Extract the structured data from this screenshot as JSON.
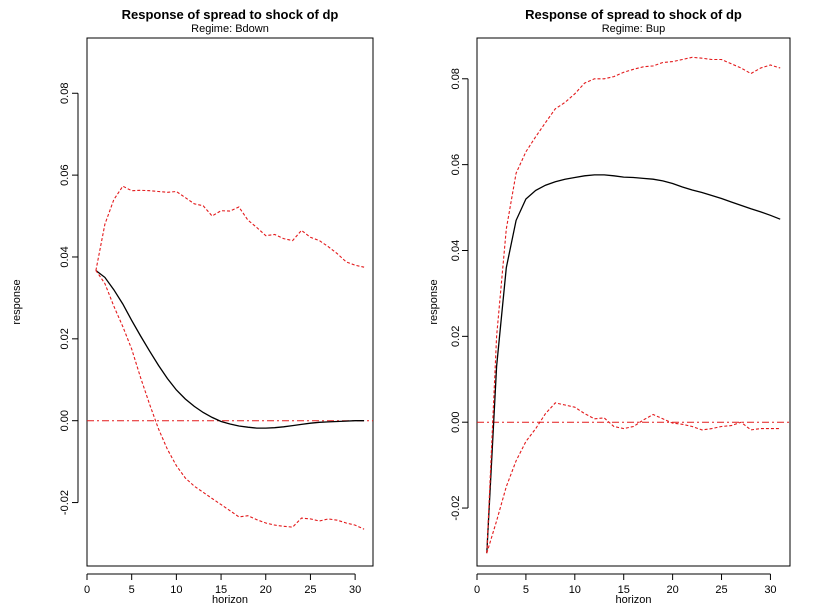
{
  "chart_data": [
    {
      "type": "line",
      "title": "Response of spread to shock of dp",
      "subtitle": "Regime: Bdown",
      "xlabel": "horizon",
      "ylabel": "response",
      "xlim": [
        0,
        32
      ],
      "ylim": [
        -0.0355,
        0.0935
      ],
      "x_ticks": [
        0,
        5,
        10,
        15,
        20,
        25,
        30
      ],
      "y_ticks": [
        -0.02,
        0.0,
        0.02,
        0.04,
        0.06,
        0.08
      ],
      "y_tick_labels": [
        "-0.02",
        "0.00",
        "0.02",
        "0.04",
        "0.06",
        "0.08"
      ],
      "reference_line": 0,
      "colors": {
        "response": "#000000",
        "band": "#e31a1c",
        "zero": "#e31a1c"
      },
      "series": [
        {
          "role": "response",
          "x": [
            1,
            2,
            3,
            4,
            5,
            6,
            7,
            8,
            9,
            10,
            11,
            12,
            13,
            14,
            15,
            16,
            17,
            18,
            19,
            20,
            21,
            22,
            23,
            24,
            25,
            26,
            27,
            28,
            29,
            30,
            31
          ],
          "values": [
            0.0367,
            0.035,
            0.032,
            0.0285,
            0.0245,
            0.0207,
            0.017,
            0.0135,
            0.0103,
            0.0075,
            0.0053,
            0.0035,
            0.002,
            0.0008,
            -0.0002,
            -0.0008,
            -0.0013,
            -0.0016,
            -0.0018,
            -0.0018,
            -0.0017,
            -0.0015,
            -0.0012,
            -0.0009,
            -0.0006,
            -0.0004,
            -0.0003,
            -0.0002,
            -0.0001,
            0.0,
            0.0
          ]
        },
        {
          "role": "upper",
          "x": [
            1,
            2,
            3,
            4,
            5,
            6,
            7,
            8,
            9,
            10,
            11,
            12,
            13,
            14,
            15,
            16,
            17,
            18,
            19,
            20,
            21,
            22,
            23,
            24,
            25,
            26,
            27,
            28,
            29,
            30,
            31
          ],
          "values": [
            0.0367,
            0.048,
            0.054,
            0.0573,
            0.0562,
            0.0563,
            0.0562,
            0.056,
            0.0558,
            0.056,
            0.0545,
            0.053,
            0.0525,
            0.05,
            0.0513,
            0.0512,
            0.0522,
            0.049,
            0.0472,
            0.0452,
            0.0455,
            0.0445,
            0.044,
            0.0465,
            0.0448,
            0.044,
            0.0425,
            0.0408,
            0.0388,
            0.038,
            0.0375
          ]
        },
        {
          "role": "lower",
          "x": [
            1,
            2,
            3,
            4,
            5,
            6,
            7,
            8,
            9,
            10,
            11,
            12,
            13,
            14,
            15,
            16,
            17,
            18,
            19,
            20,
            21,
            22,
            23,
            24,
            25,
            26,
            27,
            28,
            29,
            30,
            31
          ],
          "values": [
            0.0367,
            0.0335,
            0.028,
            0.023,
            0.0175,
            0.0105,
            0.004,
            -0.002,
            -0.007,
            -0.011,
            -0.014,
            -0.016,
            -0.0175,
            -0.019,
            -0.0205,
            -0.022,
            -0.0235,
            -0.0232,
            -0.0242,
            -0.025,
            -0.0255,
            -0.0258,
            -0.026,
            -0.0238,
            -0.024,
            -0.0245,
            -0.024,
            -0.0243,
            -0.025,
            -0.0255,
            -0.0265
          ]
        }
      ]
    },
    {
      "type": "line",
      "title": "Response of spread to shock of dp",
      "subtitle": "Regime: Bup",
      "xlabel": "horizon",
      "ylabel": "response",
      "xlim": [
        0,
        32
      ],
      "ylim": [
        -0.0335,
        0.0895
      ],
      "x_ticks": [
        0,
        5,
        10,
        15,
        20,
        25,
        30
      ],
      "y_ticks": [
        -0.02,
        0.0,
        0.02,
        0.04,
        0.06,
        0.08
      ],
      "y_tick_labels": [
        "-0.02",
        "0.00",
        "0.02",
        "0.04",
        "0.06",
        "0.08"
      ],
      "reference_line": 0,
      "colors": {
        "response": "#000000",
        "band": "#e31a1c",
        "zero": "#e31a1c"
      },
      "series": [
        {
          "role": "response",
          "x": [
            1,
            2,
            3,
            4,
            5,
            6,
            7,
            8,
            9,
            10,
            11,
            12,
            13,
            14,
            15,
            16,
            17,
            18,
            19,
            20,
            21,
            22,
            23,
            24,
            25,
            26,
            27,
            28,
            29,
            30,
            31
          ],
          "values": [
            -0.0305,
            0.013,
            0.036,
            0.047,
            0.052,
            0.054,
            0.0552,
            0.056,
            0.0566,
            0.057,
            0.0574,
            0.0576,
            0.0576,
            0.0574,
            0.0571,
            0.057,
            0.0568,
            0.0566,
            0.0562,
            0.0556,
            0.0548,
            0.0541,
            0.0535,
            0.0528,
            0.0521,
            0.0513,
            0.0505,
            0.0497,
            0.049,
            0.0482,
            0.0473
          ]
        },
        {
          "role": "upper",
          "x": [
            1,
            2,
            3,
            4,
            5,
            6,
            7,
            8,
            9,
            10,
            11,
            12,
            13,
            14,
            15,
            16,
            17,
            18,
            19,
            20,
            21,
            22,
            23,
            24,
            25,
            26,
            27,
            28,
            29,
            30,
            31
          ],
          "values": [
            -0.0305,
            0.02,
            0.045,
            0.058,
            0.063,
            0.0665,
            0.0698,
            0.073,
            0.0745,
            0.0765,
            0.079,
            0.08,
            0.08,
            0.0805,
            0.0815,
            0.0822,
            0.0828,
            0.083,
            0.0838,
            0.084,
            0.0845,
            0.085,
            0.0848,
            0.0845,
            0.0845,
            0.0835,
            0.0825,
            0.0812,
            0.0825,
            0.0832,
            0.0825
          ]
        },
        {
          "role": "lower",
          "x": [
            1,
            2,
            3,
            4,
            5,
            6,
            7,
            8,
            9,
            10,
            11,
            12,
            13,
            14,
            15,
            16,
            17,
            18,
            19,
            20,
            21,
            22,
            23,
            24,
            25,
            26,
            27,
            28,
            29,
            30,
            31
          ],
          "values": [
            -0.0305,
            -0.023,
            -0.015,
            -0.009,
            -0.0045,
            -0.0015,
            0.002,
            0.0045,
            0.004,
            0.0035,
            0.002,
            0.0008,
            0.001,
            -0.001,
            -0.0015,
            -0.001,
            0.0005,
            0.0018,
            0.0008,
            -0.0002,
            -0.0005,
            -0.001,
            -0.0018,
            -0.0015,
            -0.001,
            -0.0008,
            0.0,
            -0.0018,
            -0.0015,
            -0.0015,
            -0.0015
          ]
        }
      ]
    }
  ]
}
